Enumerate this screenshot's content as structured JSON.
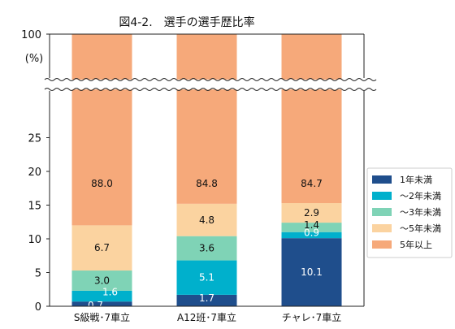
{
  "chart_data": {
    "type": "bar",
    "stacked": true,
    "title": "図4-2.　選手の選手歴比率",
    "unit_label": "(%)",
    "ylim": [
      0,
      100
    ],
    "axis_break": [
      30,
      100
    ],
    "yticks": [
      "0",
      "5",
      "10",
      "15",
      "20",
      "25",
      "100"
    ],
    "categories": [
      "S級戦･7車立",
      "A12班･7車立",
      "チャレ･7車立"
    ],
    "series": [
      {
        "name": "1年未満",
        "color": "#1f4e8c",
        "label_color": "#ffffff",
        "values": [
          0.7,
          1.7,
          10.1
        ],
        "labels": [
          "0.7",
          "1.7",
          "10.1"
        ]
      },
      {
        "name": "～2年未満",
        "color": "#00b0cc",
        "label_color": "#ffffff",
        "values": [
          1.6,
          5.1,
          0.9
        ],
        "labels": [
          "1.6",
          "5.1",
          "0.9"
        ]
      },
      {
        "name": "～3年未満",
        "color": "#7fd3b6",
        "label_color": "#111111",
        "values": [
          3.0,
          3.6,
          1.4
        ],
        "labels": [
          "3.0",
          "3.6",
          "1.4"
        ]
      },
      {
        "name": "～5年未満",
        "color": "#fbd3a0",
        "label_color": "#111111",
        "values": [
          6.7,
          4.8,
          2.9
        ],
        "labels": [
          "6.7",
          "4.8",
          "2.9"
        ]
      },
      {
        "name": "5年以上",
        "color": "#f6a97a",
        "label_color": "#111111",
        "values": [
          88.0,
          84.8,
          84.7
        ],
        "labels": [
          "88.0",
          "84.8",
          "84.7"
        ]
      }
    ],
    "legend_position": "right",
    "grid": false
  }
}
